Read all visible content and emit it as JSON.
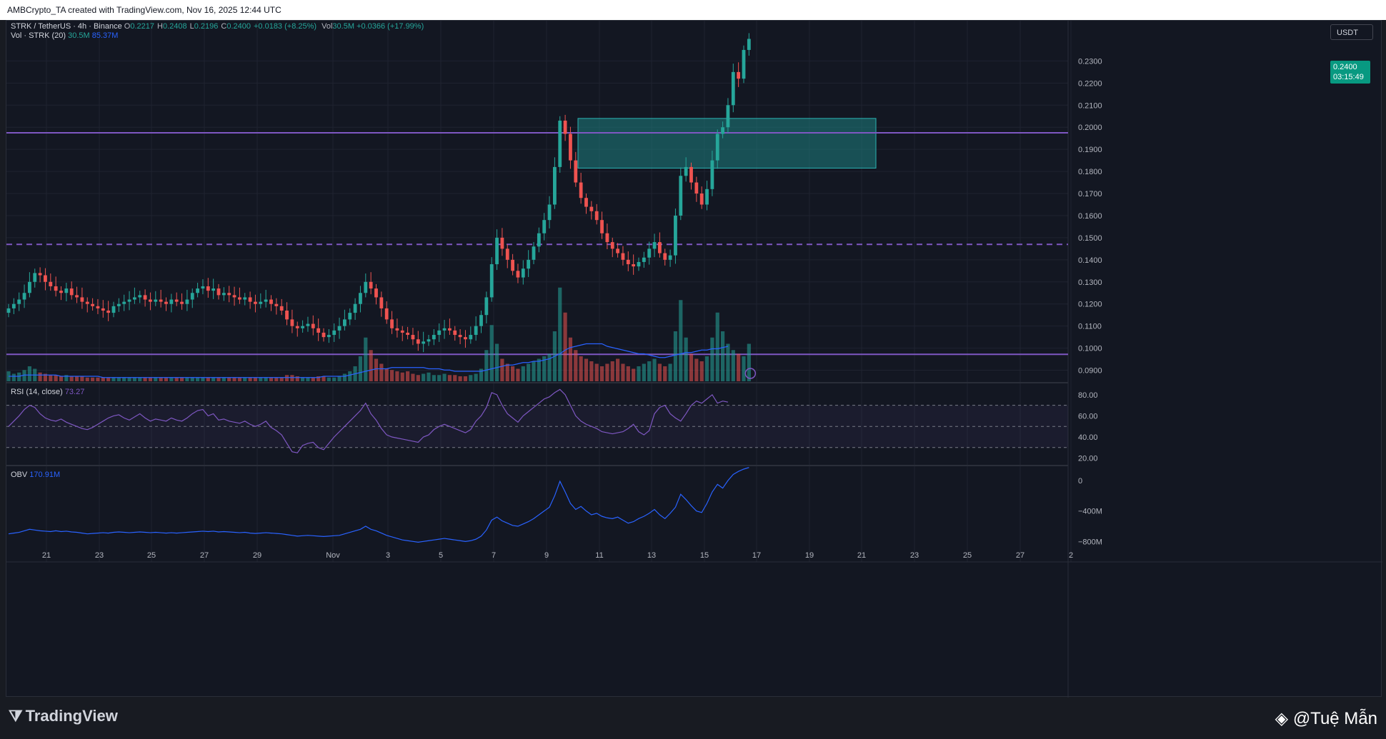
{
  "header": {
    "caption": "AMBCrypto_TA created with TradingView.com, Nov 16, 2025 12:44 UTC"
  },
  "legend": {
    "pair": "STRK / TetherUS · 4h · Binance",
    "ohlc": [
      {
        "k": "O",
        "v": "0.2217"
      },
      {
        "k": "H",
        "v": "0.2408"
      },
      {
        "k": "L",
        "v": "0.2196"
      },
      {
        "k": "C",
        "v": "0.2400"
      },
      {
        "k": "",
        "v": "+0.0183 (+8.25%)"
      }
    ],
    "vol_label": "Vol",
    "vol_value": "30.5M",
    "vol_change": "+0.0366 (+17.99%)",
    "vol_indicator_label": "Vol · STRK (20)",
    "vol_indicator_v1": "30.5M",
    "vol_indicator_v2": "85.37M",
    "rsi_label": "RSI (14, close)",
    "rsi_value": "73.27",
    "obv_label": "OBV",
    "obv_value": "170.91M"
  },
  "currency_button": "USDT",
  "last_price": {
    "price": "0.2400",
    "countdown": "03:15:49"
  },
  "price_axis": [
    "0.2300",
    "0.2200",
    "0.2100",
    "0.2000",
    "0.1900",
    "0.1800",
    "0.1700",
    "0.1600",
    "0.1500",
    "0.1400",
    "0.1300",
    "0.1200",
    "0.1100",
    "0.1000",
    "0.0900"
  ],
  "rsi_axis": [
    "80.00",
    "60.00",
    "40.00",
    "20.00"
  ],
  "obv_axis": [
    "0",
    "−400M",
    "−800M"
  ],
  "time_axis": [
    "21",
    "23",
    "25",
    "27",
    "29",
    "Nov",
    "3",
    "5",
    "7",
    "9",
    "11",
    "13",
    "15",
    "17",
    "19",
    "21",
    "23",
    "25",
    "27",
    "2"
  ],
  "footer": {
    "brand": "TradingView",
    "watermark": "@Tuệ Mẫn"
  },
  "colors": {
    "up": "#26a69a",
    "down": "#ef5350",
    "zone": "#1e7f7f",
    "level": "#7e57c2",
    "obv": "#2962ff"
  },
  "chart_data": [
    {
      "type": "candlestick",
      "title": "STRK / TetherUS · 4h · Binance",
      "y_range": [
        0.085,
        0.245
      ],
      "levels": [
        {
          "price": 0.1975,
          "style": "solid"
        },
        {
          "price": 0.147,
          "style": "dashed"
        },
        {
          "price": 0.0972,
          "style": "solid"
        }
      ],
      "zone": {
        "from_date": "Nov 10",
        "to_date": "Nov 21",
        "low": 0.1815,
        "high": 0.204
      },
      "closes": [
        0.118,
        0.12,
        0.122,
        0.125,
        0.13,
        0.134,
        0.133,
        0.13,
        0.128,
        0.126,
        0.125,
        0.127,
        0.124,
        0.123,
        0.121,
        0.12,
        0.119,
        0.118,
        0.117,
        0.116,
        0.119,
        0.12,
        0.121,
        0.122,
        0.123,
        0.124,
        0.122,
        0.121,
        0.122,
        0.121,
        0.12,
        0.122,
        0.121,
        0.12,
        0.122,
        0.125,
        0.127,
        0.128,
        0.126,
        0.127,
        0.124,
        0.125,
        0.124,
        0.123,
        0.122,
        0.123,
        0.121,
        0.12,
        0.121,
        0.122,
        0.12,
        0.119,
        0.117,
        0.113,
        0.11,
        0.109,
        0.11,
        0.111,
        0.109,
        0.107,
        0.105,
        0.106,
        0.108,
        0.11,
        0.113,
        0.116,
        0.12,
        0.125,
        0.13,
        0.127,
        0.123,
        0.118,
        0.113,
        0.109,
        0.108,
        0.107,
        0.106,
        0.104,
        0.102,
        0.103,
        0.104,
        0.106,
        0.108,
        0.109,
        0.108,
        0.106,
        0.105,
        0.104,
        0.106,
        0.11,
        0.115,
        0.123,
        0.138,
        0.15,
        0.145,
        0.14,
        0.135,
        0.132,
        0.136,
        0.14,
        0.146,
        0.152,
        0.158,
        0.165,
        0.182,
        0.203,
        0.197,
        0.185,
        0.175,
        0.168,
        0.164,
        0.162,
        0.158,
        0.152,
        0.148,
        0.145,
        0.143,
        0.14,
        0.138,
        0.137,
        0.139,
        0.141,
        0.145,
        0.148,
        0.143,
        0.14,
        0.142,
        0.16,
        0.178,
        0.182,
        0.175,
        0.17,
        0.165,
        0.172,
        0.185,
        0.197,
        0.2,
        0.21,
        0.225,
        0.222,
        0.235,
        0.24
      ],
      "volumes": [
        8,
        6,
        7,
        9,
        12,
        10,
        7,
        6,
        5,
        5,
        4,
        5,
        4,
        4,
        4,
        3,
        3,
        3,
        3,
        3,
        3,
        3,
        3,
        3,
        3,
        3,
        3,
        3,
        3,
        3,
        3,
        3,
        3,
        3,
        3,
        3,
        3,
        3,
        3,
        3,
        3,
        3,
        3,
        3,
        3,
        3,
        3,
        3,
        3,
        3,
        3,
        3,
        3,
        5,
        5,
        4,
        3,
        3,
        3,
        4,
        4,
        3,
        3,
        4,
        6,
        8,
        12,
        20,
        35,
        25,
        18,
        14,
        10,
        9,
        8,
        7,
        8,
        6,
        5,
        6,
        7,
        5,
        5,
        6,
        5,
        5,
        4,
        4,
        5,
        6,
        10,
        25,
        45,
        30,
        18,
        14,
        12,
        10,
        12,
        14,
        16,
        18,
        20,
        22,
        40,
        75,
        55,
        35,
        25,
        20,
        18,
        16,
        14,
        12,
        14,
        16,
        18,
        14,
        12,
        10,
        12,
        14,
        16,
        18,
        14,
        12,
        14,
        40,
        65,
        35,
        22,
        18,
        16,
        20,
        35,
        55,
        40,
        30,
        25,
        22,
        20,
        30
      ],
      "vol_ma": [
        4,
        4,
        4,
        5,
        5,
        5,
        5,
        5,
        5,
        5,
        4,
        4,
        4,
        4,
        4,
        4,
        4,
        4,
        3,
        3,
        3,
        3,
        3,
        3,
        3,
        3,
        3,
        3,
        3,
        3,
        3,
        3,
        3,
        3,
        3,
        3,
        3,
        3,
        3,
        3,
        3,
        3,
        3,
        3,
        3,
        3,
        3,
        3,
        3,
        3,
        3,
        3,
        3,
        3,
        3,
        3,
        3,
        3,
        3,
        3,
        4,
        4,
        4,
        4,
        4,
        5,
        6,
        7,
        8,
        9,
        10,
        10,
        10,
        11,
        11,
        11,
        11,
        11,
        11,
        11,
        10,
        10,
        10,
        9,
        9,
        8,
        8,
        8,
        8,
        8,
        8,
        9,
        10,
        11,
        12,
        13,
        13,
        14,
        15,
        15,
        16,
        16,
        17,
        18,
        20,
        22,
        25,
        27,
        28,
        29,
        30,
        30,
        30,
        30,
        28,
        27,
        26,
        25,
        24,
        23,
        22,
        22,
        21,
        20,
        19,
        19,
        20,
        21,
        22,
        23,
        23,
        24,
        25,
        25,
        26,
        26,
        27,
        28
      ]
    },
    {
      "type": "line",
      "title": "RSI (14, close)",
      "y_range": [
        15,
        88
      ],
      "bands": [
        70,
        50,
        30
      ],
      "values": [
        50,
        55,
        60,
        66,
        70,
        68,
        62,
        58,
        56,
        55,
        57,
        54,
        52,
        50,
        48,
        47,
        49,
        52,
        55,
        58,
        60,
        61,
        58,
        56,
        59,
        62,
        58,
        55,
        57,
        56,
        55,
        58,
        56,
        55,
        58,
        62,
        65,
        66,
        60,
        62,
        56,
        57,
        55,
        54,
        53,
        55,
        52,
        50,
        52,
        55,
        49,
        46,
        42,
        34,
        26,
        25,
        32,
        34,
        35,
        30,
        28,
        34,
        40,
        45,
        50,
        55,
        60,
        65,
        72,
        62,
        56,
        48,
        42,
        40,
        39,
        38,
        37,
        36,
        35,
        40,
        42,
        47,
        50,
        52,
        50,
        48,
        46,
        44,
        47,
        55,
        60,
        68,
        82,
        80,
        70,
        62,
        58,
        54,
        60,
        64,
        68,
        72,
        76,
        78,
        82,
        85,
        80,
        70,
        60,
        55,
        52,
        50,
        48,
        45,
        44,
        43,
        44,
        45,
        48,
        52,
        45,
        42,
        46,
        62,
        68,
        70,
        62,
        58,
        55,
        62,
        70,
        74,
        72,
        76,
        80,
        72,
        74,
        73
      ]
    },
    {
      "type": "line",
      "title": "OBV",
      "y_range": [
        -900,
        150
      ],
      "values": [
        -700,
        -690,
        -680,
        -660,
        -640,
        -650,
        -660,
        -665,
        -670,
        -660,
        -670,
        -665,
        -675,
        -680,
        -690,
        -700,
        -695,
        -690,
        -685,
        -690,
        -680,
        -675,
        -680,
        -685,
        -680,
        -675,
        -680,
        -685,
        -680,
        -685,
        -690,
        -685,
        -690,
        -685,
        -680,
        -675,
        -670,
        -665,
        -670,
        -665,
        -675,
        -670,
        -675,
        -680,
        -685,
        -680,
        -690,
        -695,
        -690,
        -685,
        -690,
        -695,
        -700,
        -710,
        -720,
        -730,
        -725,
        -720,
        -725,
        -730,
        -735,
        -730,
        -725,
        -720,
        -700,
        -680,
        -660,
        -640,
        -600,
        -640,
        -660,
        -690,
        -720,
        -740,
        -760,
        -780,
        -790,
        -800,
        -810,
        -800,
        -790,
        -780,
        -770,
        -760,
        -770,
        -780,
        -790,
        -800,
        -790,
        -770,
        -730,
        -650,
        -520,
        -480,
        -530,
        -560,
        -590,
        -600,
        -570,
        -540,
        -500,
        -450,
        -400,
        -350,
        -200,
        -10,
        -150,
        -300,
        -380,
        -340,
        -400,
        -450,
        -430,
        -470,
        -490,
        -500,
        -480,
        -520,
        -560,
        -540,
        -500,
        -470,
        -430,
        -380,
        -450,
        -500,
        -430,
        -350,
        -180,
        -250,
        -330,
        -400,
        -420,
        -300,
        -150,
        -50,
        -100,
        0,
        80,
        120,
        150,
        171
      ]
    }
  ]
}
